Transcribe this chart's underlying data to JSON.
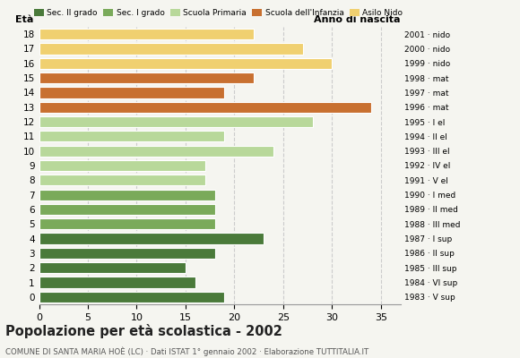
{
  "ages": [
    18,
    17,
    16,
    15,
    14,
    13,
    12,
    11,
    10,
    9,
    8,
    7,
    6,
    5,
    4,
    3,
    2,
    1,
    0
  ],
  "values": [
    19,
    16,
    15,
    18,
    23,
    18,
    18,
    18,
    17,
    17,
    24,
    19,
    28,
    34,
    19,
    22,
    30,
    27,
    22
  ],
  "anno_nascita": [
    "1983 · V sup",
    "1984 · VI sup",
    "1985 · III sup",
    "1986 · II sup",
    "1987 · I sup",
    "1988 · III med",
    "1989 · II med",
    "1990 · I med",
    "1991 · V el",
    "1992 · IV el",
    "1993 · III el",
    "1994 · II el",
    "1995 · I el",
    "1996 · mat",
    "1997 · mat",
    "1998 · mat",
    "1999 · nido",
    "2000 · nido",
    "2001 · nido"
  ],
  "colors": [
    "#4a7a3a",
    "#4a7a3a",
    "#4a7a3a",
    "#4a7a3a",
    "#4a7a3a",
    "#7aaa5a",
    "#7aaa5a",
    "#7aaa5a",
    "#b8d89a",
    "#b8d89a",
    "#b8d89a",
    "#b8d89a",
    "#b8d89a",
    "#c87030",
    "#c87030",
    "#c87030",
    "#f0d070",
    "#f0d070",
    "#f0d070"
  ],
  "legend_labels": [
    "Sec. II grado",
    "Sec. I grado",
    "Scuola Primaria",
    "Scuola dell'Infanzia",
    "Asilo Nido"
  ],
  "legend_colors": [
    "#4a7a3a",
    "#7aaa5a",
    "#b8d89a",
    "#c87030",
    "#f0d070"
  ],
  "title": "Popolazione per età scolastica - 2002",
  "subtitle": "COMUNE DI SANTA MARIA HOÈ (LC) · Dati ISTAT 1° gennaio 2002 · Elaborazione TUTTITALIA.IT",
  "xlabel_eta": "Età",
  "xlabel_anno": "Anno di nascita",
  "xlim": [
    0,
    37
  ],
  "xticks": [
    0,
    5,
    10,
    15,
    20,
    25,
    30,
    35
  ],
  "background_color": "#f5f5f0",
  "grid_color": "#cccccc"
}
